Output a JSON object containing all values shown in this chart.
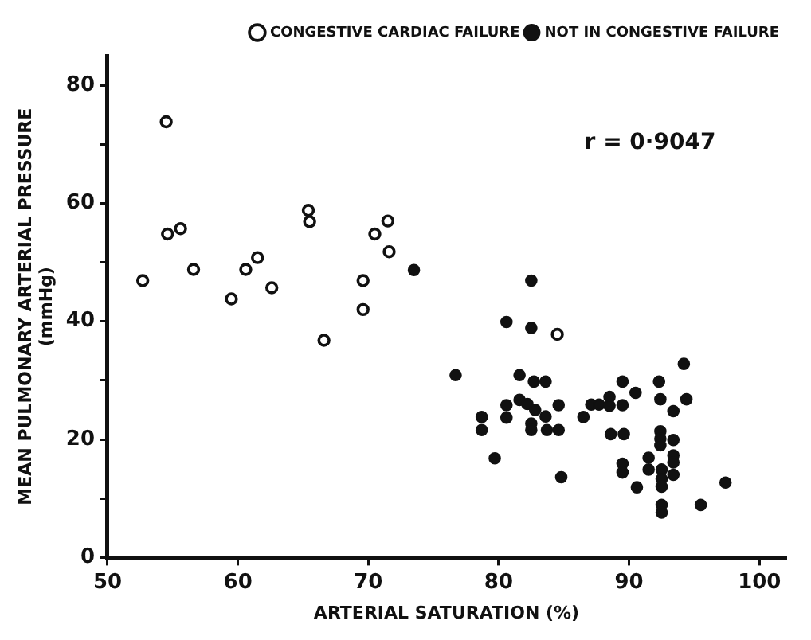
{
  "chart_data": {
    "type": "scatter",
    "xlabel": "ARTERIAL SATURATION (%)",
    "ylabel": "MEAN PULMONARY ARTERIAL PRESSURE\n(mmHg)",
    "annotations": [
      "r = 0·9047"
    ],
    "xlim": [
      50,
      102
    ],
    "xticks": [
      50,
      60,
      70,
      80,
      90,
      100
    ],
    "ylim": [
      0,
      85
    ],
    "yticks": [
      0,
      {
        "value": 10,
        "label": null
      },
      20,
      {
        "value": 30,
        "label": null
      },
      40,
      {
        "value": 50,
        "label": null
      },
      60,
      {
        "value": 70,
        "label": null
      },
      80
    ],
    "grid": false,
    "legend": "top right",
    "marker": "circle",
    "series": [
      {
        "name": "CONGESTIVE CARDIAC FAILURE",
        "color": "#111111",
        "x": [
          52.7,
          54.5,
          54.6,
          55.6,
          56.6,
          59.5,
          60.6,
          61.5,
          62.6,
          65.4,
          65.5,
          66.6,
          69.6,
          69.6,
          70.5,
          71.5,
          71.6,
          84.5
        ],
        "values": [
          46.9,
          73.8,
          54.8,
          55.7,
          48.8,
          43.8,
          48.8,
          50.8,
          45.7,
          58.8,
          56.9,
          36.8,
          46.9,
          42,
          54.8,
          57,
          51.8,
          37.8
        ]
      },
      {
        "name": "NOT IN CONGESTIVE FAILURE",
        "color": "#111111",
        "x": [
          73.5,
          82.5,
          80.6,
          82.5,
          76.7,
          81.6,
          82.7,
          83.6,
          81.6,
          80.6,
          82.2,
          82.8,
          84.6,
          80.6,
          83.6,
          82.5,
          82.5,
          78.7,
          78.7,
          83.7,
          84.6,
          79.7,
          84.8,
          86.5,
          87.1,
          87.7,
          88.5,
          88.5,
          89.5,
          89.5,
          90.5,
          88.6,
          89.6,
          89.5,
          89.5,
          91.5,
          91.5,
          90.6,
          92.3,
          92.4,
          94.2,
          94.4,
          93.4,
          92.4,
          92.4,
          92.4,
          93.4,
          93.4,
          93.4,
          93.4,
          92.5,
          92.5,
          92.5,
          92.5,
          92.5,
          95.5,
          97.4
        ],
        "values": [
          48.7,
          46.9,
          39.9,
          38.9,
          30.9,
          30.9,
          29.8,
          29.8,
          26.7,
          25.8,
          26,
          25,
          25.8,
          23.7,
          23.9,
          22.7,
          21.6,
          23.8,
          21.6,
          21.6,
          21.6,
          16.8,
          13.6,
          23.8,
          25.9,
          25.9,
          27.2,
          25.7,
          29.8,
          25.8,
          27.9,
          20.9,
          20.9,
          15.9,
          14.4,
          16.9,
          14.9,
          11.9,
          29.8,
          26.8,
          32.8,
          26.8,
          24.8,
          21.4,
          20.1,
          19,
          19.9,
          17.3,
          16.1,
          14,
          14.9,
          13.3,
          12,
          8.9,
          7.6,
          8.9,
          12.7
        ]
      }
    ]
  }
}
